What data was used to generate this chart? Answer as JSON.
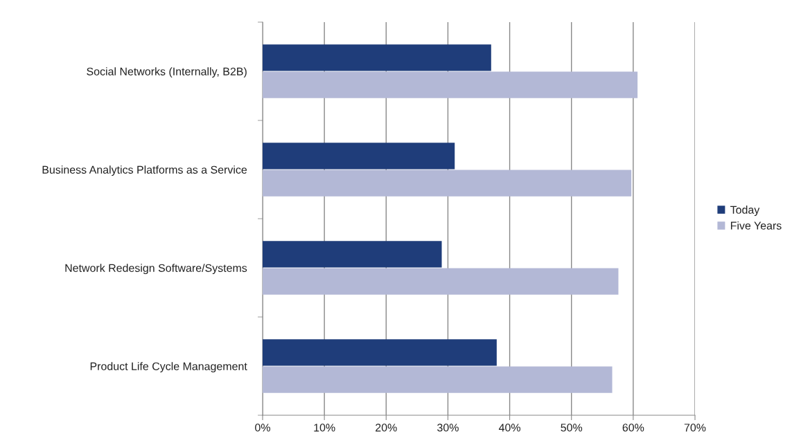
{
  "chart_data": {
    "type": "bar",
    "orientation": "horizontal",
    "categories": [
      "Social Networks (Internally, B2B)",
      "Business Analytics Platforms as a Service",
      "Network Redesign Software/Systems",
      "Product Life Cycle Management"
    ],
    "series": [
      {
        "name": "Today",
        "color": "#1f3d7a",
        "values": [
          37,
          31.1,
          29,
          37.9
        ]
      },
      {
        "name": "Five Years",
        "color": "#b3b8d6",
        "values": [
          60.7,
          59.7,
          57.6,
          56.6
        ]
      }
    ],
    "xlim": [
      0,
      70
    ],
    "xticks": [
      {
        "value": 0,
        "label": "0%"
      },
      {
        "value": 10,
        "label": "10%"
      },
      {
        "value": 20,
        "label": "20%"
      },
      {
        "value": 30,
        "label": "30%"
      },
      {
        "value": 40,
        "label": "40%"
      },
      {
        "value": 50,
        "label": "50%"
      },
      {
        "value": 60,
        "label": "60%"
      },
      {
        "value": 70,
        "label": "70%"
      }
    ],
    "grid": "x",
    "legend": "right"
  }
}
